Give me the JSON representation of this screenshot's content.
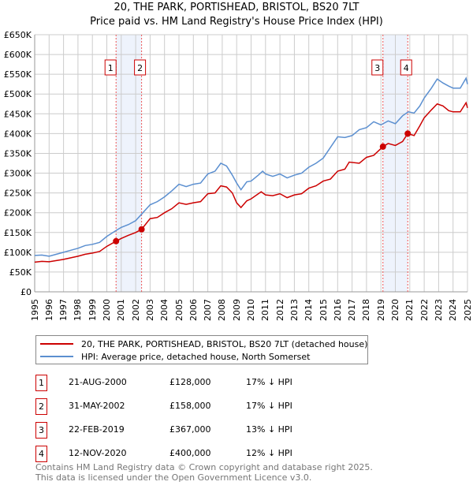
{
  "title": "20, THE PARK, PORTISHEAD, BRISTOL, BS20 7LT",
  "subtitle": "Price paid vs. HM Land Registry's House Price Index (HPI)",
  "colors": {
    "property": "#cc0000",
    "hpi": "#5b8fd0",
    "shade": "#eef3fc",
    "grid": "#cccccc"
  },
  "chart_data": {
    "type": "line",
    "xlim": [
      1995,
      2025
    ],
    "ylim": [
      0,
      650000
    ],
    "x_ticks": [
      "1995",
      "1996",
      "1997",
      "1998",
      "1999",
      "2000",
      "2001",
      "2002",
      "2003",
      "2004",
      "2005",
      "2006",
      "2007",
      "2008",
      "2009",
      "2010",
      "2011",
      "2012",
      "2013",
      "2014",
      "2015",
      "2016",
      "2017",
      "2018",
      "2019",
      "2020",
      "2021",
      "2022",
      "2023",
      "2024",
      "2025"
    ],
    "y_ticks": [
      {
        "v": 0,
        "label": "£0"
      },
      {
        "v": 50000,
        "label": "£50K"
      },
      {
        "v": 100000,
        "label": "£100K"
      },
      {
        "v": 150000,
        "label": "£150K"
      },
      {
        "v": 200000,
        "label": "£200K"
      },
      {
        "v": 250000,
        "label": "£250K"
      },
      {
        "v": 300000,
        "label": "£300K"
      },
      {
        "v": 350000,
        "label": "£350K"
      },
      {
        "v": 400000,
        "label": "£400K"
      },
      {
        "v": 450000,
        "label": "£450K"
      },
      {
        "v": 500000,
        "label": "£500K"
      },
      {
        "v": 550000,
        "label": "£550K"
      },
      {
        "v": 600000,
        "label": "£600K"
      },
      {
        "v": 650000,
        "label": "£650K"
      }
    ],
    "grid": true,
    "legend_position": "below",
    "shaded_ranges": [
      [
        2000.64,
        2002.41
      ],
      [
        2019.14,
        2020.86
      ]
    ],
    "series": [
      {
        "name": "20, THE PARK, PORTISHEAD, BRISTOL, BS20 7LT (detached house)",
        "color": "#cc0000",
        "points": [
          [
            1995,
            75
          ],
          [
            1995.5,
            77
          ],
          [
            1996,
            76
          ],
          [
            1996.5,
            79
          ],
          [
            1997,
            82
          ],
          [
            1997.5,
            86
          ],
          [
            1998,
            90
          ],
          [
            1998.5,
            95
          ],
          [
            1999,
            98
          ],
          [
            1999.5,
            102
          ],
          [
            2000,
            115
          ],
          [
            2000.64,
            128
          ],
          [
            2001,
            135
          ],
          [
            2001.5,
            143
          ],
          [
            2002,
            150
          ],
          [
            2002.41,
            158
          ],
          [
            2003,
            185
          ],
          [
            2003.5,
            188
          ],
          [
            2004,
            200
          ],
          [
            2004.5,
            210
          ],
          [
            2005,
            225
          ],
          [
            2005.5,
            221
          ],
          [
            2006,
            225
          ],
          [
            2006.5,
            228
          ],
          [
            2007,
            248
          ],
          [
            2007.5,
            250
          ],
          [
            2007.9,
            268
          ],
          [
            2008.3,
            265
          ],
          [
            2008.7,
            250
          ],
          [
            2009,
            225
          ],
          [
            2009.3,
            213
          ],
          [
            2009.7,
            230
          ],
          [
            2010,
            235
          ],
          [
            2010.7,
            253
          ],
          [
            2011,
            245
          ],
          [
            2011.5,
            243
          ],
          [
            2012,
            248
          ],
          [
            2012.5,
            238
          ],
          [
            2013,
            245
          ],
          [
            2013.5,
            248
          ],
          [
            2014,
            262
          ],
          [
            2014.5,
            268
          ],
          [
            2015,
            280
          ],
          [
            2015.5,
            285
          ],
          [
            2016,
            305
          ],
          [
            2016.5,
            310
          ],
          [
            2016.8,
            328
          ],
          [
            2017.5,
            325
          ],
          [
            2018,
            340
          ],
          [
            2018.5,
            345
          ],
          [
            2019.14,
            367
          ],
          [
            2019.5,
            375
          ],
          [
            2020,
            370
          ],
          [
            2020.5,
            380
          ],
          [
            2020.86,
            400
          ],
          [
            2021.3,
            395
          ],
          [
            2021.7,
            420
          ],
          [
            2022,
            440
          ],
          [
            2022.5,
            460
          ],
          [
            2022.9,
            475
          ],
          [
            2023.3,
            470
          ],
          [
            2023.7,
            458
          ],
          [
            2024,
            455
          ],
          [
            2024.5,
            455
          ],
          [
            2024.9,
            478
          ],
          [
            2025,
            465
          ]
        ]
      },
      {
        "name": "HPI: Average price, detached house, North Somerset",
        "color": "#5b8fd0",
        "points": [
          [
            1995,
            92
          ],
          [
            1995.5,
            93
          ],
          [
            1996,
            90
          ],
          [
            1996.5,
            95
          ],
          [
            1997,
            100
          ],
          [
            1997.5,
            105
          ],
          [
            1998,
            110
          ],
          [
            1998.5,
            117
          ],
          [
            1999,
            120
          ],
          [
            1999.5,
            125
          ],
          [
            2000,
            140
          ],
          [
            2000.64,
            155
          ],
          [
            2001,
            163
          ],
          [
            2001.5,
            170
          ],
          [
            2002,
            180
          ],
          [
            2002.5,
            200
          ],
          [
            2003,
            220
          ],
          [
            2003.5,
            228
          ],
          [
            2004,
            240
          ],
          [
            2004.5,
            255
          ],
          [
            2005,
            272
          ],
          [
            2005.5,
            266
          ],
          [
            2006,
            272
          ],
          [
            2006.5,
            275
          ],
          [
            2007,
            298
          ],
          [
            2007.5,
            305
          ],
          [
            2007.9,
            325
          ],
          [
            2008.3,
            318
          ],
          [
            2008.7,
            295
          ],
          [
            2009,
            275
          ],
          [
            2009.3,
            258
          ],
          [
            2009.7,
            278
          ],
          [
            2010,
            280
          ],
          [
            2010.5,
            295
          ],
          [
            2010.8,
            305
          ],
          [
            2011,
            298
          ],
          [
            2011.5,
            292
          ],
          [
            2012,
            298
          ],
          [
            2012.5,
            288
          ],
          [
            2013,
            295
          ],
          [
            2013.5,
            300
          ],
          [
            2014,
            315
          ],
          [
            2014.5,
            325
          ],
          [
            2015,
            338
          ],
          [
            2015.5,
            365
          ],
          [
            2016,
            392
          ],
          [
            2016.5,
            390
          ],
          [
            2017,
            395
          ],
          [
            2017.5,
            410
          ],
          [
            2018,
            415
          ],
          [
            2018.5,
            430
          ],
          [
            2019,
            422
          ],
          [
            2019.5,
            432
          ],
          [
            2020,
            425
          ],
          [
            2020.5,
            445
          ],
          [
            2020.9,
            455
          ],
          [
            2021.3,
            452
          ],
          [
            2021.7,
            470
          ],
          [
            2022,
            490
          ],
          [
            2022.5,
            515
          ],
          [
            2022.9,
            538
          ],
          [
            2023.3,
            528
          ],
          [
            2023.7,
            520
          ],
          [
            2024,
            515
          ],
          [
            2024.5,
            515
          ],
          [
            2024.9,
            540
          ],
          [
            2025,
            525
          ]
        ]
      }
    ],
    "sales": [
      {
        "id": "1",
        "x": 2000.64,
        "price": 128000
      },
      {
        "id": "2",
        "x": 2002.41,
        "price": 158000
      },
      {
        "id": "3",
        "x": 2019.14,
        "price": 367000
      },
      {
        "id": "4",
        "x": 2020.86,
        "price": 400000
      }
    ]
  },
  "legend": {
    "property": "20, THE PARK, PORTISHEAD, BRISTOL, BS20 7LT (detached house)",
    "hpi": "HPI: Average price, detached house, North Somerset"
  },
  "transactions": [
    {
      "id": "1",
      "date": "21-AUG-2000",
      "price": "£128,000",
      "hpi": "17% ↓ HPI"
    },
    {
      "id": "2",
      "date": "31-MAY-2002",
      "price": "£158,000",
      "hpi": "17% ↓ HPI"
    },
    {
      "id": "3",
      "date": "22-FEB-2019",
      "price": "£367,000",
      "hpi": "13% ↓ HPI"
    },
    {
      "id": "4",
      "date": "12-NOV-2020",
      "price": "£400,000",
      "hpi": "12% ↓ HPI"
    }
  ],
  "footer": {
    "line1": "Contains HM Land Registry data © Crown copyright and database right 2025.",
    "line2": "This data is licensed under the Open Government Licence v3.0."
  }
}
